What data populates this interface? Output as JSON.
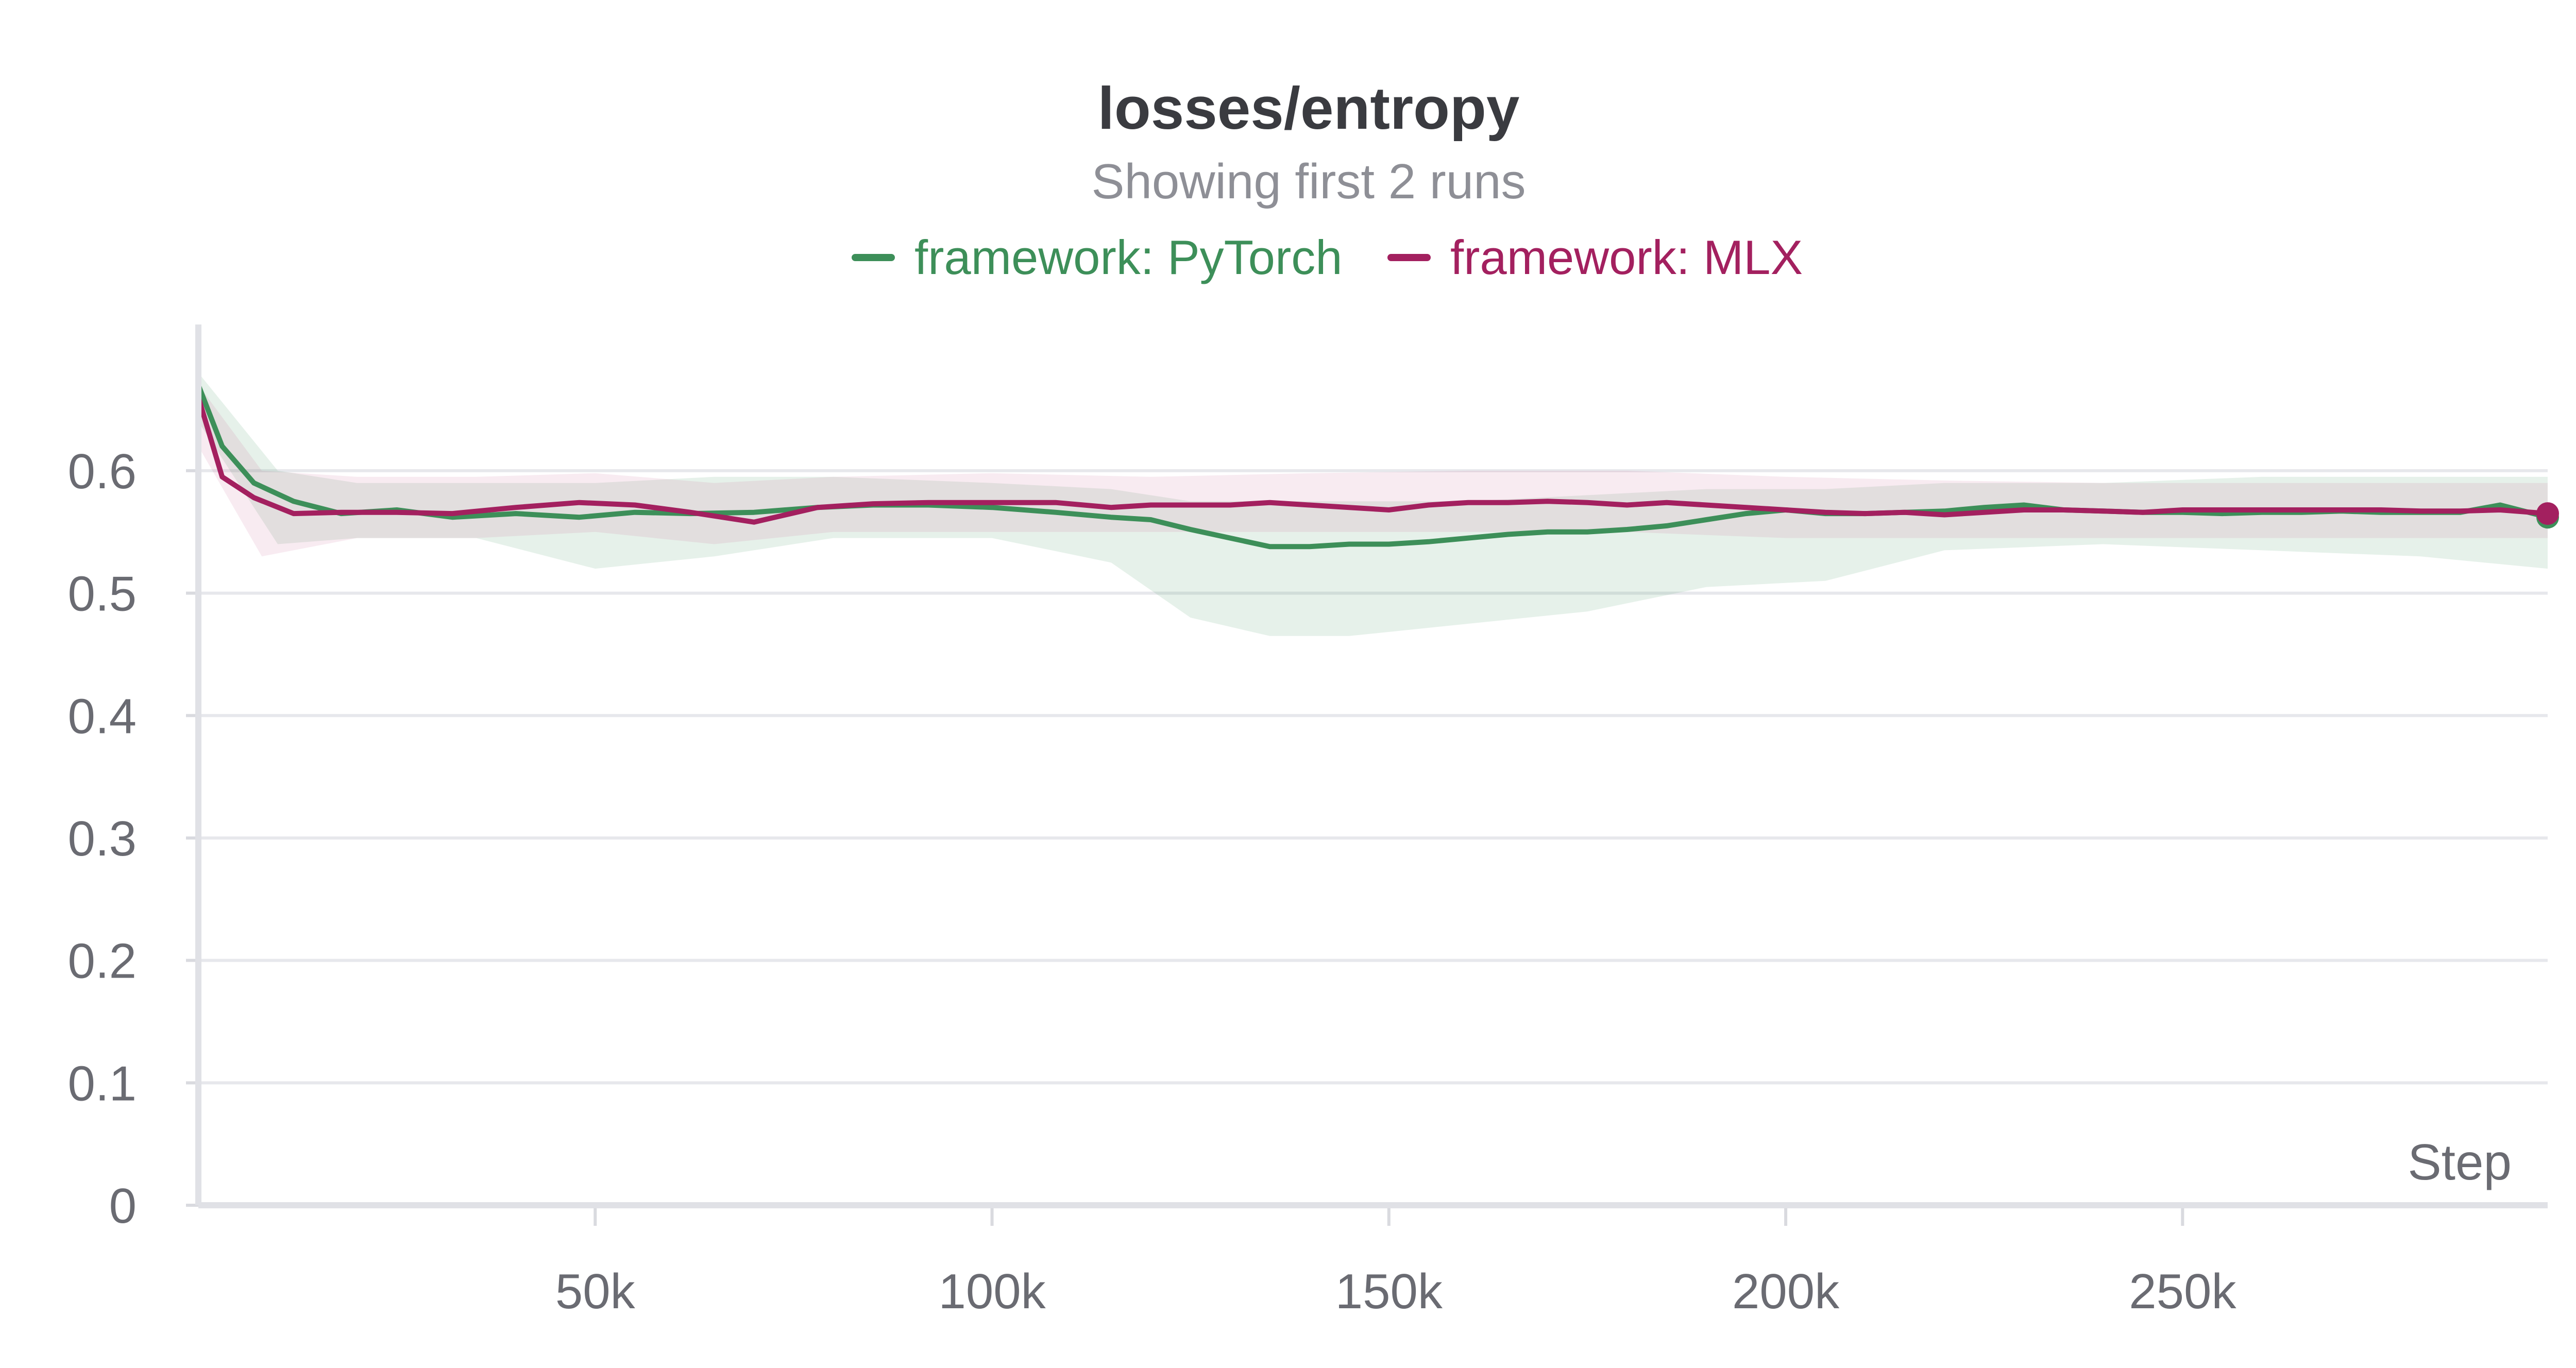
{
  "chart_data": {
    "type": "line",
    "title": "losses/entropy",
    "subtitle": "Showing first 2 runs",
    "xlabel": "Step",
    "ylabel": "",
    "xlim": [
      0,
      296000
    ],
    "ylim": [
      0,
      0.69
    ],
    "x_ticks": [
      50000,
      100000,
      150000,
      200000,
      250000
    ],
    "x_tick_labels": [
      "50k",
      "100k",
      "150k",
      "200k",
      "250k"
    ],
    "y_ticks": [
      0,
      0.1,
      0.2,
      0.3,
      0.4,
      0.5,
      0.6
    ],
    "y_tick_labels": [
      "0",
      "0.1",
      "0.2",
      "0.3",
      "0.4",
      "0.5",
      "0.6"
    ],
    "grid": true,
    "legend_position": "top-center",
    "series": [
      {
        "name": "framework: PyTorch",
        "color": "#3d8f59",
        "band_color": "#3d8f59",
        "points": [
          [
            0,
            0.67
          ],
          [
            3000,
            0.62
          ],
          [
            7000,
            0.59
          ],
          [
            12000,
            0.575
          ],
          [
            18000,
            0.565
          ],
          [
            25000,
            0.568
          ],
          [
            32000,
            0.562
          ],
          [
            40000,
            0.565
          ],
          [
            48000,
            0.562
          ],
          [
            55000,
            0.566
          ],
          [
            62000,
            0.565
          ],
          [
            70000,
            0.566
          ],
          [
            78000,
            0.57
          ],
          [
            85000,
            0.572
          ],
          [
            92000,
            0.572
          ],
          [
            100000,
            0.57
          ],
          [
            108000,
            0.566
          ],
          [
            115000,
            0.562
          ],
          [
            120000,
            0.56
          ],
          [
            125000,
            0.552
          ],
          [
            130000,
            0.545
          ],
          [
            135000,
            0.538
          ],
          [
            140000,
            0.538
          ],
          [
            145000,
            0.54
          ],
          [
            150000,
            0.54
          ],
          [
            155000,
            0.542
          ],
          [
            160000,
            0.545
          ],
          [
            165000,
            0.548
          ],
          [
            170000,
            0.55
          ],
          [
            175000,
            0.55
          ],
          [
            180000,
            0.552
          ],
          [
            185000,
            0.555
          ],
          [
            190000,
            0.56
          ],
          [
            195000,
            0.565
          ],
          [
            200000,
            0.568
          ],
          [
            205000,
            0.565
          ],
          [
            210000,
            0.565
          ],
          [
            215000,
            0.566
          ],
          [
            220000,
            0.567
          ],
          [
            225000,
            0.57
          ],
          [
            230000,
            0.572
          ],
          [
            235000,
            0.568
          ],
          [
            240000,
            0.567
          ],
          [
            245000,
            0.566
          ],
          [
            250000,
            0.566
          ],
          [
            255000,
            0.565
          ],
          [
            260000,
            0.566
          ],
          [
            265000,
            0.566
          ],
          [
            270000,
            0.567
          ],
          [
            275000,
            0.566
          ],
          [
            280000,
            0.566
          ],
          [
            285000,
            0.566
          ],
          [
            290000,
            0.572
          ],
          [
            296000,
            0.562
          ]
        ],
        "band": [
          [
            0,
            0.64,
            0.68
          ],
          [
            10000,
            0.54,
            0.6
          ],
          [
            20000,
            0.545,
            0.59
          ],
          [
            35000,
            0.545,
            0.59
          ],
          [
            50000,
            0.52,
            0.59
          ],
          [
            65000,
            0.53,
            0.595
          ],
          [
            80000,
            0.545,
            0.595
          ],
          [
            100000,
            0.545,
            0.59
          ],
          [
            115000,
            0.525,
            0.585
          ],
          [
            125000,
            0.48,
            0.575
          ],
          [
            135000,
            0.465,
            0.575
          ],
          [
            145000,
            0.465,
            0.575
          ],
          [
            160000,
            0.475,
            0.575
          ],
          [
            175000,
            0.485,
            0.58
          ],
          [
            190000,
            0.505,
            0.585
          ],
          [
            205000,
            0.51,
            0.585
          ],
          [
            220000,
            0.535,
            0.59
          ],
          [
            240000,
            0.54,
            0.59
          ],
          [
            260000,
            0.535,
            0.595
          ],
          [
            280000,
            0.53,
            0.595
          ],
          [
            296000,
            0.52,
            0.595
          ]
        ]
      },
      {
        "name": "framework: MLX",
        "color": "#a3205f",
        "band_color": "#c45a8c",
        "points": [
          [
            0,
            0.66
          ],
          [
            3000,
            0.595
          ],
          [
            7000,
            0.578
          ],
          [
            12000,
            0.565
          ],
          [
            18000,
            0.566
          ],
          [
            25000,
            0.566
          ],
          [
            32000,
            0.565
          ],
          [
            40000,
            0.57
          ],
          [
            48000,
            0.574
          ],
          [
            55000,
            0.572
          ],
          [
            62000,
            0.566
          ],
          [
            70000,
            0.558
          ],
          [
            78000,
            0.57
          ],
          [
            85000,
            0.573
          ],
          [
            92000,
            0.574
          ],
          [
            100000,
            0.574
          ],
          [
            108000,
            0.574
          ],
          [
            115000,
            0.57
          ],
          [
            120000,
            0.572
          ],
          [
            125000,
            0.572
          ],
          [
            130000,
            0.572
          ],
          [
            135000,
            0.574
          ],
          [
            140000,
            0.572
          ],
          [
            145000,
            0.57
          ],
          [
            150000,
            0.568
          ],
          [
            155000,
            0.572
          ],
          [
            160000,
            0.574
          ],
          [
            165000,
            0.574
          ],
          [
            170000,
            0.575
          ],
          [
            175000,
            0.574
          ],
          [
            180000,
            0.572
          ],
          [
            185000,
            0.574
          ],
          [
            190000,
            0.572
          ],
          [
            195000,
            0.57
          ],
          [
            200000,
            0.568
          ],
          [
            205000,
            0.566
          ],
          [
            210000,
            0.565
          ],
          [
            215000,
            0.566
          ],
          [
            220000,
            0.564
          ],
          [
            225000,
            0.566
          ],
          [
            230000,
            0.568
          ],
          [
            235000,
            0.568
          ],
          [
            240000,
            0.567
          ],
          [
            245000,
            0.566
          ],
          [
            250000,
            0.568
          ],
          [
            255000,
            0.568
          ],
          [
            260000,
            0.568
          ],
          [
            265000,
            0.568
          ],
          [
            270000,
            0.568
          ],
          [
            275000,
            0.568
          ],
          [
            280000,
            0.567
          ],
          [
            285000,
            0.567
          ],
          [
            290000,
            0.568
          ],
          [
            296000,
            0.565
          ]
        ],
        "band": [
          [
            0,
            0.62,
            0.67
          ],
          [
            8000,
            0.53,
            0.6
          ],
          [
            20000,
            0.545,
            0.595
          ],
          [
            35000,
            0.545,
            0.595
          ],
          [
            50000,
            0.55,
            0.598
          ],
          [
            65000,
            0.54,
            0.59
          ],
          [
            80000,
            0.55,
            0.595
          ],
          [
            100000,
            0.55,
            0.598
          ],
          [
            120000,
            0.55,
            0.595
          ],
          [
            140000,
            0.55,
            0.598
          ],
          [
            160000,
            0.55,
            0.6
          ],
          [
            180000,
            0.55,
            0.6
          ],
          [
            200000,
            0.545,
            0.595
          ],
          [
            220000,
            0.545,
            0.592
          ],
          [
            240000,
            0.545,
            0.59
          ],
          [
            260000,
            0.545,
            0.59
          ],
          [
            280000,
            0.545,
            0.59
          ],
          [
            296000,
            0.545,
            0.59
          ]
        ]
      }
    ]
  }
}
